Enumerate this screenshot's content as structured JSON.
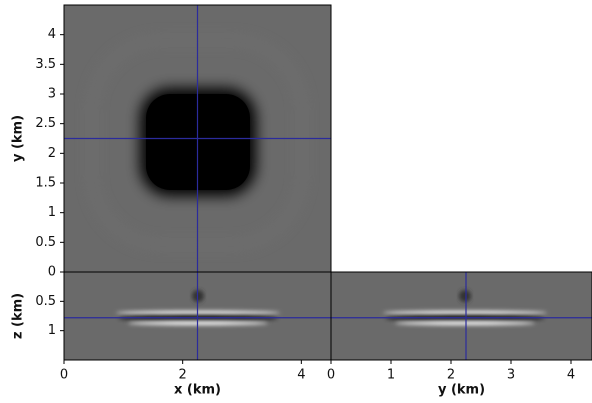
{
  "chart_data": [
    {
      "type": "image",
      "xlim": [
        0,
        4.5
      ],
      "ylim": [
        0,
        4.5
      ],
      "yticks": [
        0,
        0.5,
        1,
        1.5,
        2,
        2.5,
        3,
        3.5,
        4
      ],
      "ylabel": "y (km)",
      "crosshair": {
        "x": 2.25,
        "y": 2.25
      },
      "color": "#2b2b9c"
    },
    {
      "type": "image",
      "xlim": [
        0,
        4.5
      ],
      "ylim": [
        1.5,
        0
      ],
      "xticks": [
        0,
        2,
        4
      ],
      "yticks": [
        0.5,
        1
      ],
      "xlabel": "x (km)",
      "ylabel": "z (km)",
      "crosshair": {
        "x": 2.25,
        "y": 0.78
      },
      "color": "#2b2b9c"
    },
    {
      "type": "image",
      "xlim": [
        0,
        4.35
      ],
      "ylim": [
        1.5,
        0
      ],
      "xticks": [
        0,
        1,
        2,
        3,
        4
      ],
      "xlabel": "y (km)",
      "crosshair": {
        "x": 2.25,
        "y": 0.78
      },
      "color": "#2b2b9c"
    }
  ]
}
